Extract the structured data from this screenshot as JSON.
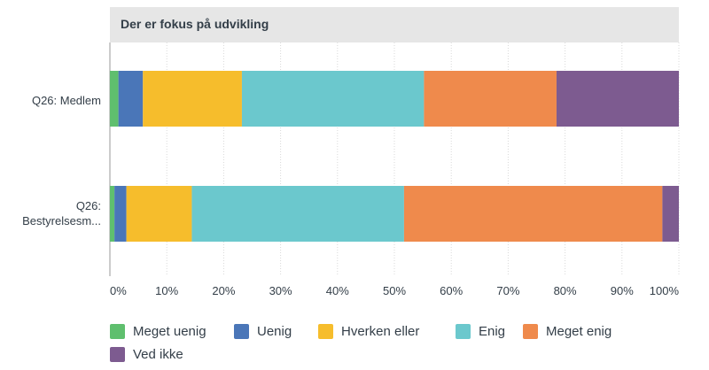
{
  "chart_data": {
    "type": "bar",
    "orientation": "horizontal",
    "stacked": true,
    "title": "Der er fokus på udvikling",
    "categories": [
      "Q26: Medlem",
      "Q26:\nBestyrelsesm..."
    ],
    "xlim": [
      0,
      100
    ],
    "x_ticks": [
      "0%",
      "10%",
      "20%",
      "30%",
      "40%",
      "50%",
      "60%",
      "70%",
      "80%",
      "90%",
      "100%"
    ],
    "grid": true,
    "legend_position": "bottom",
    "series": [
      {
        "name": "Meget uenig",
        "color": "#5fbf6e",
        "values": [
          1.5,
          0.8
        ]
      },
      {
        "name": "Uenig",
        "color": "#4a76b8",
        "values": [
          4.3,
          2.1
        ]
      },
      {
        "name": "Hverken eller",
        "color": "#f6bd2c",
        "values": [
          17.4,
          11.5
        ]
      },
      {
        "name": "Enig",
        "color": "#6bc8cd",
        "values": [
          32.0,
          37.3
        ]
      },
      {
        "name": "Meget enig",
        "color": "#ef8a4c",
        "values": [
          23.3,
          45.4
        ]
      },
      {
        "name": "Ved ikke",
        "color": "#7d5b90",
        "values": [
          21.5,
          2.9
        ]
      }
    ]
  }
}
